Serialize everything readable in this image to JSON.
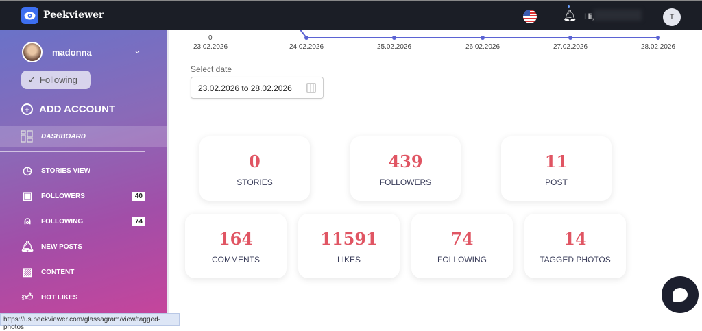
{
  "header": {
    "brand": "Peekviewer",
    "greeting": "Hi,",
    "avatar_initial": "T"
  },
  "sidebar": {
    "username": "madonna",
    "follow_status": "Following",
    "add_account": "ADD ACCOUNT",
    "dashboard": "DASHBOARD",
    "items": [
      {
        "label": "STORIES VIEW",
        "icon": "clock-icon"
      },
      {
        "label": "FOLLOWERS",
        "icon": "followers-icon",
        "badge": "40"
      },
      {
        "label": "FOLLOWING",
        "icon": "user-add-icon",
        "badge": "74"
      },
      {
        "label": "NEW POSTS",
        "icon": "bell-ring-icon"
      },
      {
        "label": "CONTENT",
        "icon": "image-icon"
      },
      {
        "label": "HOT LIKES",
        "icon": "thumbs-up-icon"
      }
    ]
  },
  "chart_data": {
    "type": "line",
    "x": [
      "23.02.2026",
      "24.02.2026",
      "25.02.2026",
      "26.02.2026",
      "27.02.2026",
      "28.02.2026"
    ],
    "values": [
      null,
      0,
      0,
      0,
      0,
      0
    ],
    "y_tick_visible": "0",
    "color": "#5b63d3"
  },
  "date_filter": {
    "label": "Select date",
    "value": "23.02.2026 to 28.02.2026"
  },
  "stats": [
    {
      "value": "0",
      "label": "STORIES"
    },
    {
      "value": "439",
      "label": "FOLLOWERS"
    },
    {
      "value": "11",
      "label": "POST"
    },
    {
      "value": "164",
      "label": "COMMENTS"
    },
    {
      "value": "11591",
      "label": "LIKES"
    },
    {
      "value": "74",
      "label": "FOLLOWING"
    },
    {
      "value": "14",
      "label": "TAGGED PHOTOS"
    }
  ],
  "status_url": "https://us.peekviewer.com/glassagram/view/tagged-photos",
  "colors": {
    "accent": "#e05563",
    "header": "#1b1e26",
    "line": "#5b63d3"
  }
}
